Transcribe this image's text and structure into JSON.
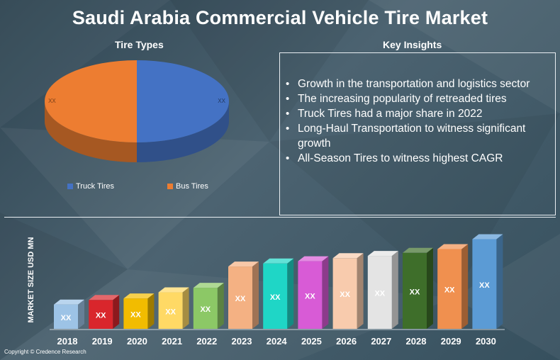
{
  "title": "Saudi Arabia Commercial Vehicle Tire Market",
  "pie_panel": {
    "title": "Tire Types"
  },
  "insights_panel": {
    "title": "Key Insights",
    "items": [
      "Growth in the transportation and logistics sector",
      "The increasing popularity of retreaded tires",
      "Truck Tires had a major share in 2022",
      "Long-Haul Transportation to witness significant growth",
      "All-Season Tires to witness highest CAGR"
    ]
  },
  "chart_data": [
    {
      "type": "pie",
      "title": "Tire Types",
      "categories": [
        "Truck Tires",
        "Bus Tires"
      ],
      "values": [
        50,
        50
      ],
      "data_labels": [
        "XX",
        "XX"
      ],
      "colors": [
        "#4472c4",
        "#ed7d31"
      ],
      "legend_position": "bottom"
    },
    {
      "type": "bar",
      "ylabel": "MARKET SIZE USD MN",
      "categories": [
        "2018",
        "2019",
        "2020",
        "2021",
        "2022",
        "2023",
        "2024",
        "2025",
        "2026",
        "2027",
        "2028",
        "2029",
        "2030"
      ],
      "values": [
        32,
        38,
        40,
        48,
        54,
        82,
        86,
        89,
        93,
        96,
        100,
        105,
        118
      ],
      "data_labels": [
        "XX",
        "XX",
        "XX",
        "XX",
        "XX",
        "XX",
        "XX",
        "XX",
        "XX",
        "XX",
        "XX",
        "XX",
        "XX"
      ],
      "ylim": [
        0,
        125
      ],
      "colors": [
        "#9dc3e6",
        "#d9262c",
        "#f2bc00",
        "#ffd965",
        "#8cc866",
        "#f4b183",
        "#1fd6c6",
        "#d85bd6",
        "#f8cbad",
        "#e4e4e4",
        "#3e6e2a",
        "#f0904f",
        "#5b9bd5"
      ]
    }
  ],
  "copyright": "Copyright © Credence Research"
}
